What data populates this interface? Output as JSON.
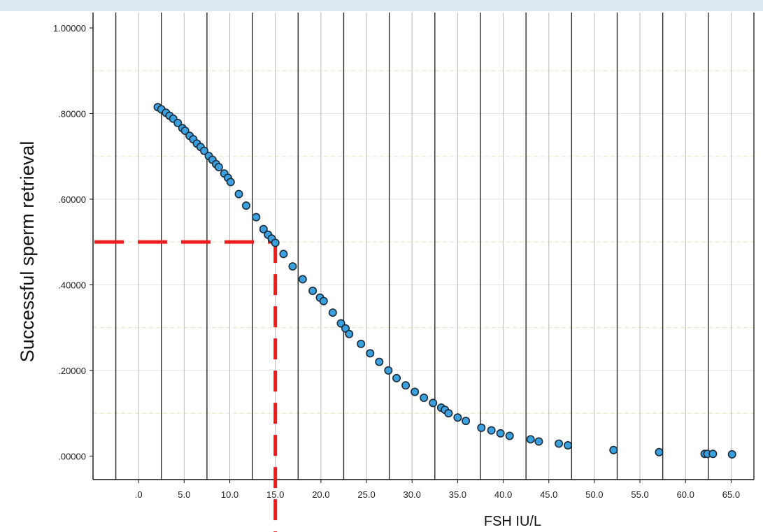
{
  "chart_data": {
    "type": "scatter",
    "title": "",
    "xlabel": "FSH IU/L",
    "ylabel": "Successful sperm retrieval",
    "xlim": [
      -5,
      67.5
    ],
    "ylim": [
      -0.055,
      1.0
    ],
    "grid": true,
    "x_ticks": [
      {
        "value": 0,
        "label": ".0"
      },
      {
        "value": 5,
        "label": "5.0"
      },
      {
        "value": 10,
        "label": "10.0"
      },
      {
        "value": 15,
        "label": "15.0"
      },
      {
        "value": 20,
        "label": "20.0"
      },
      {
        "value": 25,
        "label": "25.0"
      },
      {
        "value": 30,
        "label": "30.0"
      },
      {
        "value": 35,
        "label": "35.0"
      },
      {
        "value": 40,
        "label": "40.0"
      },
      {
        "value": 45,
        "label": "45.0"
      },
      {
        "value": 50,
        "label": "50.0"
      },
      {
        "value": 55,
        "label": "55.0"
      },
      {
        "value": 60,
        "label": "60.0"
      },
      {
        "value": 65,
        "label": "65.0"
      }
    ],
    "y_ticks": [
      {
        "value": 0,
        "label": ".00000"
      },
      {
        "value": 0.2,
        "label": ".20000"
      },
      {
        "value": 0.4,
        "label": ".40000"
      },
      {
        "value": 0.6,
        "label": ".60000"
      },
      {
        "value": 0.8,
        "label": ".80000"
      },
      {
        "value": 1.0,
        "label": "1.00000"
      }
    ],
    "points": {
      "x": [
        2.1,
        2.5,
        3.0,
        3.4,
        3.8,
        4.3,
        4.8,
        5.1,
        5.6,
        6.0,
        6.4,
        6.8,
        7.2,
        7.7,
        8.1,
        8.5,
        8.8,
        9.4,
        9.8,
        10.1,
        11.0,
        11.8,
        12.9,
        13.7,
        14.2,
        14.6,
        15.0,
        15.9,
        16.9,
        18.0,
        19.1,
        19.9,
        20.3,
        21.3,
        22.2,
        22.7,
        23.1,
        24.4,
        25.4,
        26.4,
        27.4,
        28.3,
        29.3,
        30.3,
        31.3,
        32.3,
        33.2,
        33.6,
        34.0,
        35.0,
        35.9,
        37.6,
        38.7,
        39.7,
        40.7,
        43.0,
        43.9,
        46.1,
        47.1,
        52.1,
        57.1,
        62.1,
        62.4,
        63.0,
        65.1
      ],
      "y": [
        0.815,
        0.81,
        0.802,
        0.795,
        0.788,
        0.778,
        0.766,
        0.76,
        0.748,
        0.74,
        0.73,
        0.722,
        0.713,
        0.701,
        0.692,
        0.682,
        0.675,
        0.66,
        0.65,
        0.64,
        0.612,
        0.585,
        0.558,
        0.53,
        0.517,
        0.508,
        0.498,
        0.472,
        0.443,
        0.413,
        0.386,
        0.37,
        0.362,
        0.335,
        0.31,
        0.298,
        0.285,
        0.262,
        0.24,
        0.22,
        0.2,
        0.182,
        0.165,
        0.15,
        0.136,
        0.124,
        0.113,
        0.108,
        0.1,
        0.09,
        0.082,
        0.066,
        0.06,
        0.053,
        0.047,
        0.039,
        0.034,
        0.029,
        0.025,
        0.014,
        0.009,
        0.005,
        0.005,
        0.005,
        0.004
      ]
    },
    "reference_point": {
      "x": 15.0,
      "y": 0.5
    },
    "colors": {
      "point_fill": "#3aa0df",
      "point_stroke": "#1d2b38",
      "reference_line": "#ee1c1c",
      "major_grid": "#2b2b2b",
      "minor_grid": "#bbbbbb",
      "h_grid": "#e8ebc6"
    }
  }
}
